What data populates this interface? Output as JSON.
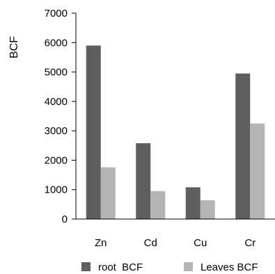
{
  "chart_data": {
    "type": "bar",
    "title": "",
    "xlabel": "",
    "ylabel": "BCF",
    "ylim": [
      0,
      7000
    ],
    "yticks": [
      "0",
      "1000",
      "2000",
      "3000",
      "4000",
      "5000",
      "6000",
      "7000"
    ],
    "categories": [
      "Zn",
      "Cd",
      "Cu",
      "Cr"
    ],
    "series": [
      {
        "name": "root  BCF",
        "values": [
          5900,
          2580,
          1080,
          4950
        ],
        "color": "#5f5f5f"
      },
      {
        "name": "Leaves BCF",
        "values": [
          1760,
          950,
          640,
          3250
        ],
        "color": "#b4b4b4"
      }
    ],
    "grid": false,
    "legend": "bottom"
  }
}
